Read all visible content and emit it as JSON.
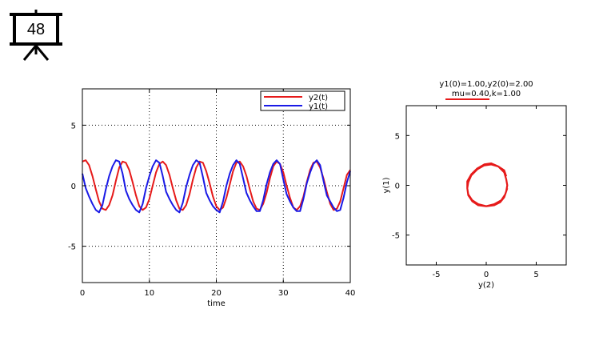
{
  "slide": {
    "number": "48"
  },
  "colors": {
    "y1": "#1a1ae6",
    "y2": "#e61a1a",
    "axis": "#000000",
    "grid": "#000000"
  },
  "chart_data": [
    {
      "type": "line",
      "xlabel": "time",
      "ylabel": "",
      "xlim": [
        0,
        40
      ],
      "ylim": [
        -8,
        8
      ],
      "xticks": [
        0,
        10,
        20,
        30,
        40
      ],
      "yticks": [
        -5,
        0,
        5
      ],
      "grid": true,
      "legend_position": "top-right",
      "series": [
        {
          "name": "y2(t)",
          "color": "#e61a1a",
          "x": [
            0,
            0.5,
            1,
            1.5,
            2,
            2.5,
            3,
            3.5,
            4,
            4.5,
            5,
            5.5,
            6,
            6.5,
            7,
            7.5,
            8,
            8.5,
            9,
            9.5,
            10,
            10.5,
            11,
            11.5,
            12,
            12.5,
            13,
            13.5,
            14,
            14.5,
            15,
            15.5,
            16,
            16.5,
            17,
            17.5,
            18,
            18.5,
            19,
            19.5,
            20,
            20.5,
            21,
            21.5,
            22,
            22.5,
            23,
            23.5,
            24,
            24.5,
            25,
            25.5,
            26,
            26.5,
            27,
            27.5,
            28,
            28.5,
            29,
            29.5,
            30,
            30.5,
            31,
            31.5,
            32,
            32.5,
            33,
            33.5,
            34,
            34.5,
            35,
            35.5,
            36,
            36.5,
            37,
            37.5,
            38,
            38.5,
            39,
            39.5,
            40
          ],
          "values": [
            2.0,
            2.1,
            1.7,
            0.8,
            -0.3,
            -1.3,
            -1.9,
            -2.0,
            -1.6,
            -0.8,
            0.4,
            1.5,
            2.0,
            1.9,
            1.3,
            0.3,
            -0.8,
            -1.7,
            -2.0,
            -1.8,
            -1.1,
            0.0,
            1.1,
            1.8,
            2.0,
            1.7,
            0.9,
            -0.2,
            -1.2,
            -1.9,
            -2.0,
            -1.6,
            -0.7,
            0.5,
            1.5,
            2.0,
            1.9,
            1.2,
            0.2,
            -0.9,
            -1.7,
            -2.0,
            -1.8,
            -1.0,
            0.1,
            1.2,
            1.9,
            2.0,
            1.6,
            0.8,
            -0.3,
            -1.3,
            -1.9,
            -2.0,
            -1.5,
            -0.6,
            0.6,
            1.6,
            2.0,
            1.8,
            1.1,
            0.0,
            -1.0,
            -1.8,
            -2.0,
            -1.7,
            -0.9,
            0.3,
            1.3,
            1.9,
            2.0,
            1.5,
            0.6,
            -0.5,
            -1.5,
            -2.0,
            -1.9,
            -1.3,
            -0.2,
            0.9,
            1.3
          ]
        },
        {
          "name": "y1(t)",
          "color": "#1a1ae6",
          "x": [
            0,
            0.5,
            1,
            1.5,
            2,
            2.5,
            3,
            3.5,
            4,
            4.5,
            5,
            5.5,
            6,
            6.5,
            7,
            7.5,
            8,
            8.5,
            9,
            9.5,
            10,
            10.5,
            11,
            11.5,
            12,
            12.5,
            13,
            13.5,
            14,
            14.5,
            15,
            15.5,
            16,
            16.5,
            17,
            17.5,
            18,
            18.5,
            19,
            19.5,
            20,
            20.5,
            21,
            21.5,
            22,
            22.5,
            23,
            23.5,
            24,
            24.5,
            25,
            25.5,
            26,
            26.5,
            27,
            27.5,
            28,
            28.5,
            29,
            29.5,
            30,
            30.5,
            31,
            31.5,
            32,
            32.5,
            33,
            33.5,
            34,
            34.5,
            35,
            35.5,
            36,
            36.5,
            37,
            37.5,
            38,
            38.5,
            39,
            39.5,
            40
          ],
          "values": [
            1.0,
            -0.2,
            -0.9,
            -1.5,
            -2.0,
            -2.2,
            -1.6,
            -0.3,
            0.8,
            1.6,
            2.1,
            2.0,
            1.0,
            -0.4,
            -1.1,
            -1.6,
            -2.0,
            -2.2,
            -1.5,
            -0.2,
            0.8,
            1.6,
            2.1,
            1.9,
            0.8,
            -0.5,
            -1.1,
            -1.6,
            -2.0,
            -2.2,
            -1.4,
            -0.1,
            0.9,
            1.7,
            2.1,
            1.9,
            0.7,
            -0.6,
            -1.2,
            -1.7,
            -2.0,
            -2.2,
            -1.3,
            0.0,
            1.0,
            1.7,
            2.1,
            1.8,
            0.6,
            -0.6,
            -1.2,
            -1.7,
            -2.1,
            -2.1,
            -1.2,
            0.1,
            1.1,
            1.8,
            2.1,
            1.8,
            0.5,
            -0.7,
            -1.3,
            -1.8,
            -2.1,
            -2.1,
            -1.1,
            0.2,
            1.1,
            1.8,
            2.1,
            1.7,
            0.4,
            -0.8,
            -1.3,
            -1.8,
            -2.1,
            -2.0,
            -1.0,
            0.3,
            1.2
          ]
        }
      ]
    },
    {
      "type": "line",
      "title": "y1(0)=1.00,y2(0)=2.00",
      "subtitle": "mu=0.40,k=1.00",
      "xlabel": "y(2)",
      "ylabel": "y(1)",
      "xlim": [
        -8,
        8
      ],
      "ylim": [
        -8,
        8
      ],
      "xticks": [
        -5,
        0,
        5
      ],
      "yticks": [
        -5,
        0,
        5
      ],
      "grid": false,
      "series": [
        {
          "name": "",
          "color": "#e61a1a",
          "x": [
            2.0,
            1.8,
            1.2,
            0.5,
            -0.2,
            -0.9,
            -1.5,
            -1.8,
            -1.9,
            -1.8,
            -1.4,
            -0.8,
            0.0,
            0.8,
            1.4,
            1.8,
            2.0,
            2.1,
            2.0,
            1.8,
            1.2,
            0.5,
            -0.2,
            -0.9,
            -1.5,
            -1.9,
            -1.9,
            -1.8,
            -1.4,
            -0.8,
            0.0,
            0.8,
            1.5,
            1.9,
            2.1
          ],
          "values": [
            0.9,
            1.5,
            1.9,
            2.1,
            2.0,
            1.6,
            1.0,
            0.3,
            -0.3,
            -0.9,
            -1.5,
            -1.9,
            -2.1,
            -2.0,
            -1.7,
            -1.2,
            -0.6,
            0.0,
            0.6,
            1.3,
            1.9,
            2.2,
            2.1,
            1.7,
            1.1,
            0.4,
            -0.3,
            -1.0,
            -1.6,
            -2.0,
            -2.1,
            -1.9,
            -1.5,
            -0.9,
            -0.3
          ]
        }
      ]
    }
  ]
}
